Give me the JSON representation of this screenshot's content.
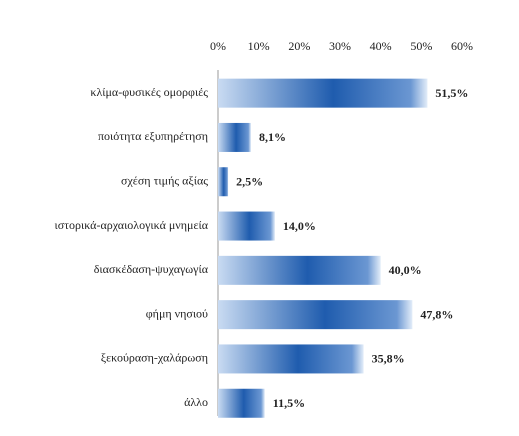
{
  "chart_data": {
    "type": "bar",
    "orientation": "horizontal",
    "categories": [
      "κλίμα-φυσικές ομορφιές",
      "ποιότητα εξυπηρέτηση",
      "σχέση τιμής αξίας",
      "ιστορικά-αρχαιολογικά μνημεία",
      "διασκέδαση-ψυχαγωγία",
      "φήμη νησιού",
      "ξεκούραση-χαλάρωση",
      "άλλο"
    ],
    "values": [
      51.5,
      8.1,
      2.5,
      14.0,
      40.0,
      47.8,
      35.8,
      11.5
    ],
    "value_labels": [
      "51,5%",
      "8,1%",
      "2,5%",
      "14,0%",
      "40,0%",
      "47,8%",
      "35,8%",
      "11,5%"
    ],
    "color": "#2a64b4",
    "xlim": [
      0,
      60
    ],
    "xticks": [
      {
        "value": 0,
        "label": "0%"
      },
      {
        "value": 10,
        "label": "10%"
      },
      {
        "value": 20,
        "label": "20%"
      },
      {
        "value": 30,
        "label": "30%"
      },
      {
        "value": 40,
        "label": "40%"
      },
      {
        "value": 50,
        "label": "50%"
      },
      {
        "value": 60,
        "label": "60%"
      }
    ],
    "grid": false
  }
}
